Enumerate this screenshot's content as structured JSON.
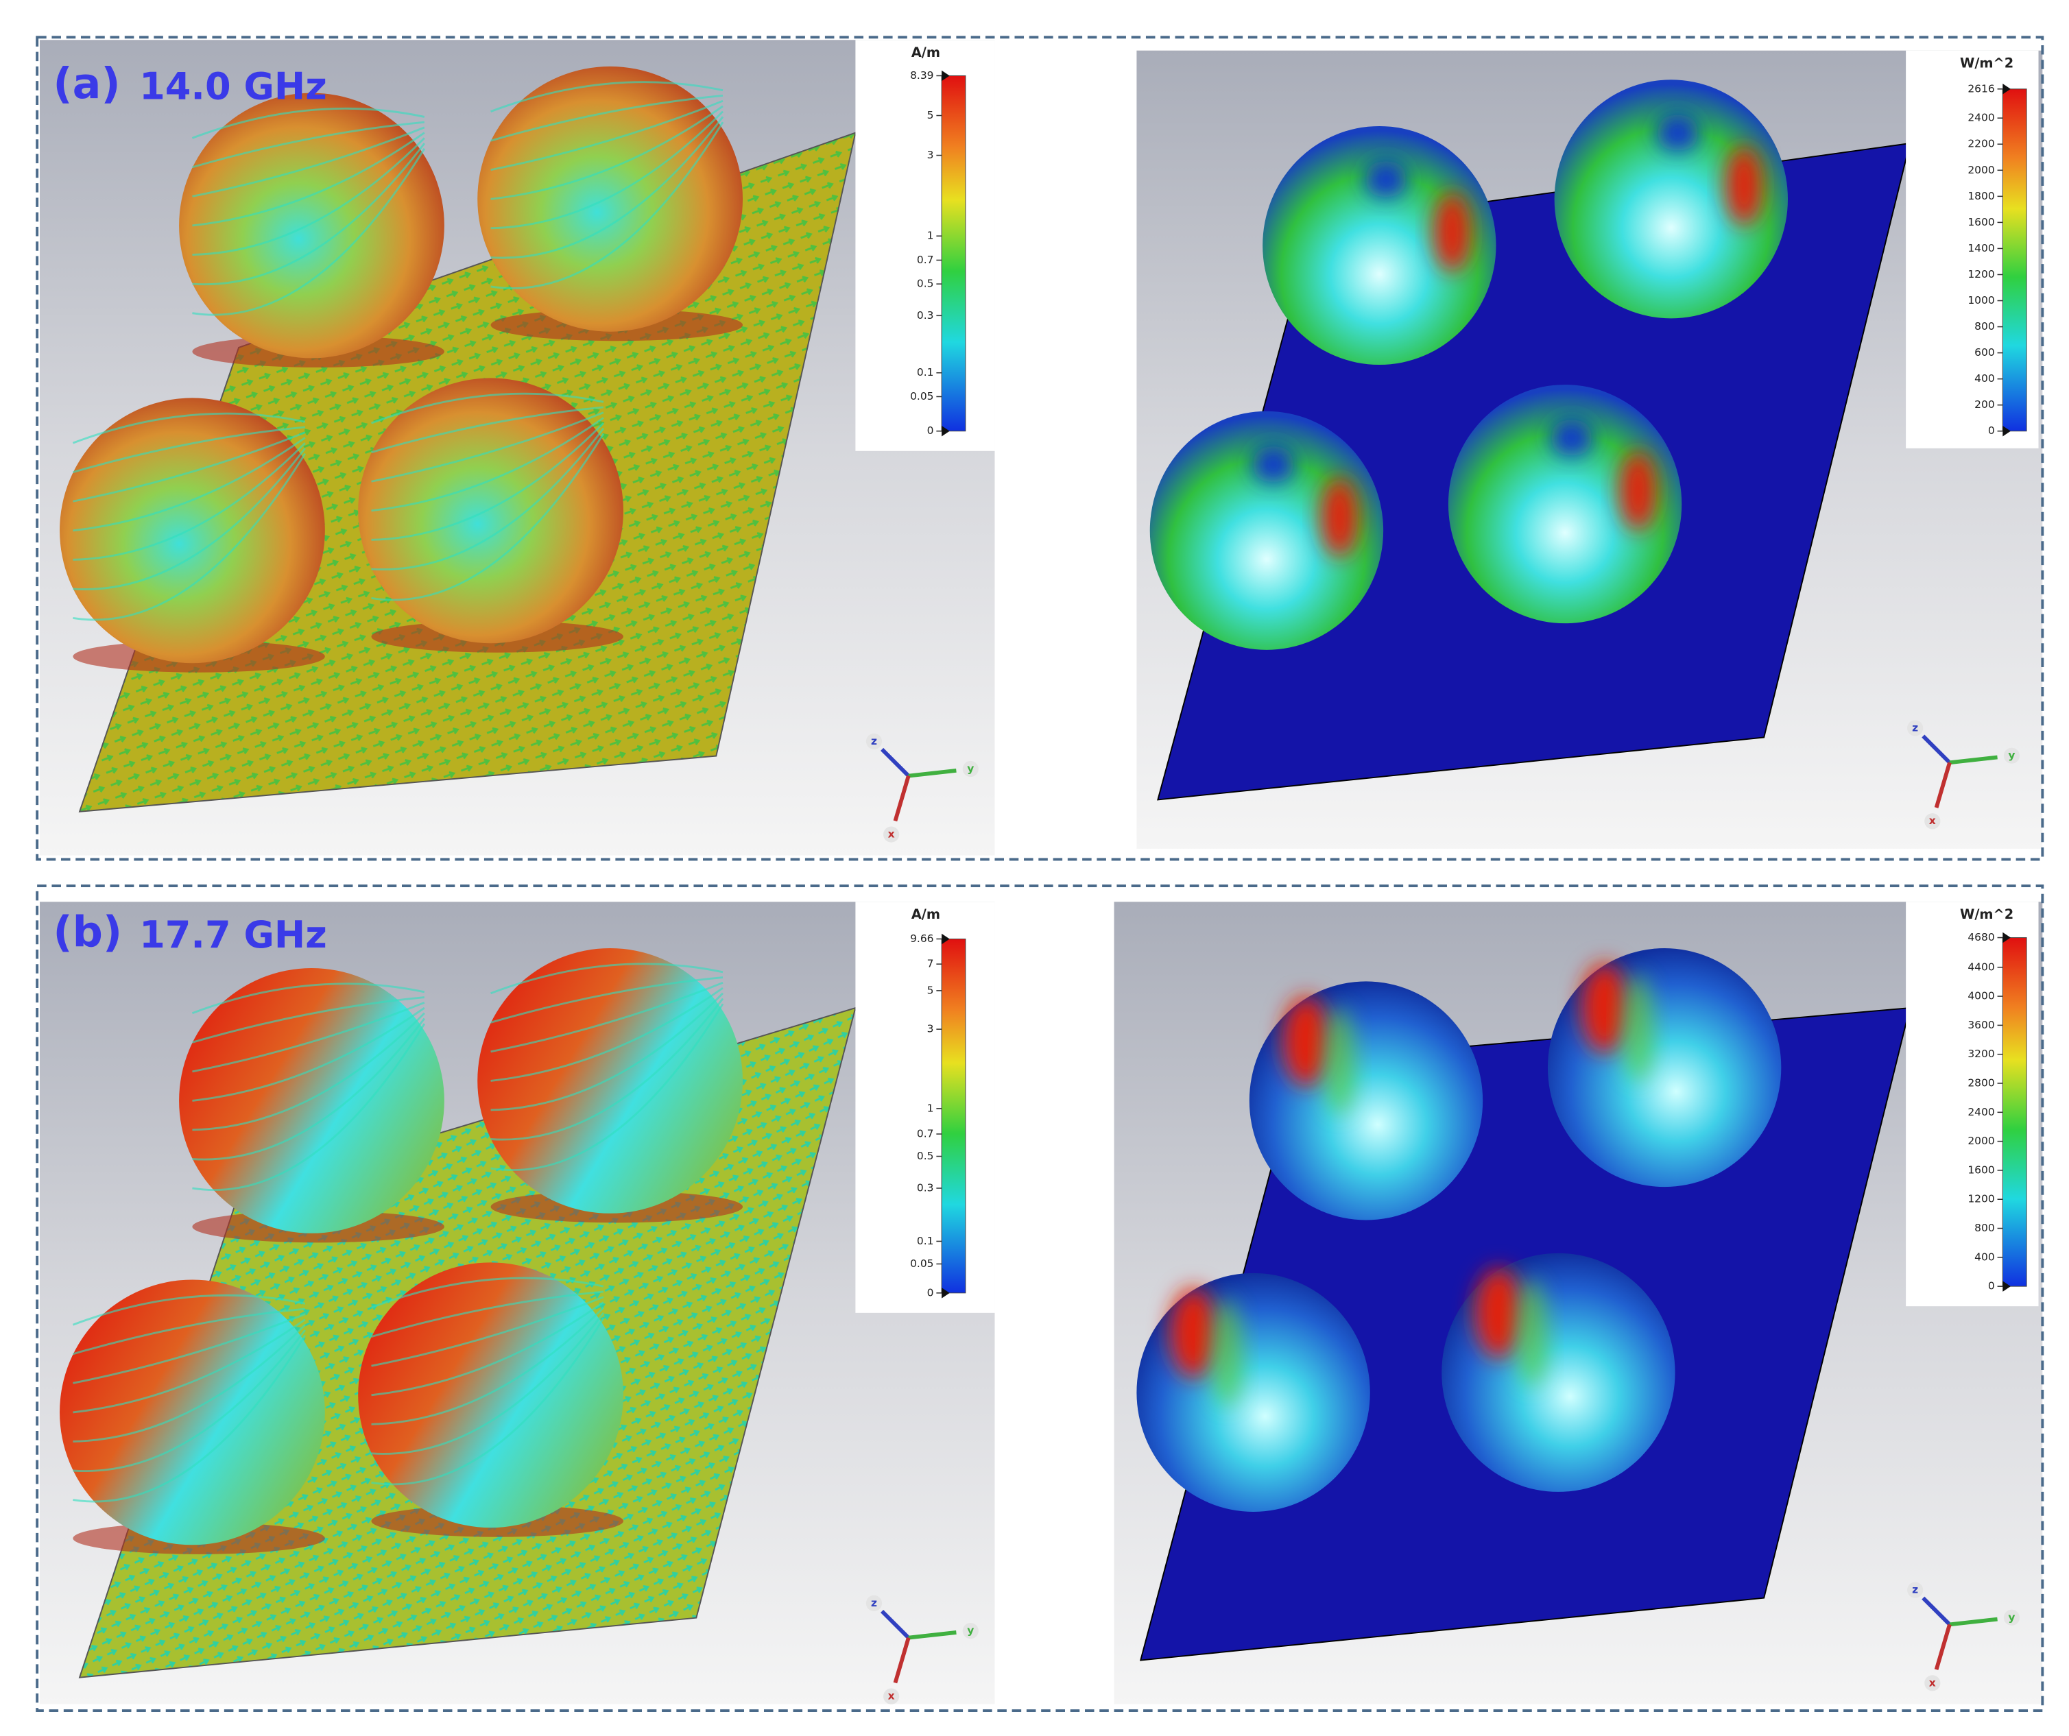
{
  "panels": [
    {
      "label": "(a)",
      "frequency": "14.0 GHz",
      "current_colorbar": {
        "unit": "A/m",
        "ticks": [
          "8.39",
          "5",
          "3",
          "1",
          "0.7",
          "0.5",
          "0.3",
          "0.1",
          "0.05",
          "0"
        ]
      },
      "power_colorbar": {
        "unit": "W/m^2",
        "ticks": [
          "2616",
          "2400",
          "2200",
          "2000",
          "1800",
          "1600",
          "1400",
          "1200",
          "1000",
          "800",
          "600",
          "400",
          "200",
          "0"
        ]
      },
      "axes": [
        "z",
        "y",
        "x"
      ]
    },
    {
      "label": "(b)",
      "frequency": "17.7 GHz",
      "current_colorbar": {
        "unit": "A/m",
        "ticks": [
          "9.66",
          "7",
          "5",
          "3",
          "1",
          "0.7",
          "0.5",
          "0.3",
          "0.1",
          "0.05",
          "0"
        ]
      },
      "power_colorbar": {
        "unit": "W/m^2",
        "ticks": [
          "4680",
          "4400",
          "4000",
          "3600",
          "3200",
          "2800",
          "2400",
          "2000",
          "1600",
          "1200",
          "800",
          "400",
          "0"
        ]
      },
      "axes": [
        "z",
        "y",
        "x"
      ]
    }
  ]
}
